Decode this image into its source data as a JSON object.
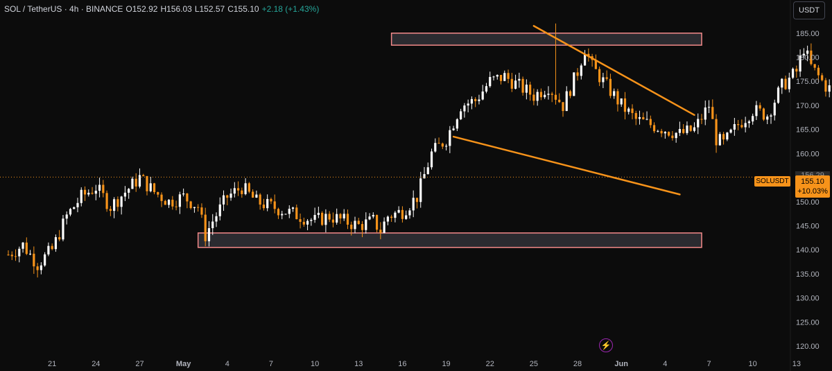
{
  "header": {
    "symbol": "SOL / TetherUS · 4h · BINANCE",
    "open": "O152.92",
    "high": "H156.03",
    "low": "L152.57",
    "close": "C155.10",
    "change": "+2.18 (+1.43%)"
  },
  "toolbar": {
    "currency_label": "USDT"
  },
  "price_scale": {
    "symbol_label": "SOLUSDT",
    "last_price": "155.10",
    "last_change": "+10.03%",
    "prev_label": "156.29",
    "ticks": [
      "185.00",
      "180.00",
      "175.00",
      "170.00",
      "165.00",
      "160.00",
      "150.00",
      "145.00",
      "140.00",
      "135.00",
      "130.00",
      "125.00",
      "120.00"
    ]
  },
  "time_scale": {
    "ticks": [
      "21",
      "24",
      "27",
      "May",
      "4",
      "7",
      "10",
      "13",
      "16",
      "19",
      "22",
      "25",
      "28",
      "Jun",
      "4",
      "7",
      "10",
      "13"
    ]
  },
  "colors": {
    "background": "#0c0c0c",
    "candle_up": "#ffffff",
    "candle_down": "#f7931a",
    "trendline": "#f7931a",
    "zone_border": "#f48a8a",
    "zone_fill": "#2b2b30",
    "last_price_line": "#f7931a"
  },
  "chart_data": {
    "type": "candlestick",
    "interval": "4h",
    "ylim": [
      118,
      189
    ],
    "price_tick_values": [
      185,
      180,
      175,
      170,
      165,
      160,
      150,
      145,
      140,
      135,
      130,
      125,
      120
    ],
    "x_range": [
      -6,
      118
    ],
    "time_tick_positions": [
      0,
      6,
      12,
      18,
      24,
      30,
      36,
      42,
      48,
      54,
      60,
      66,
      72,
      78,
      84,
      90,
      96,
      102
    ],
    "close_path": [
      [
        -6,
        139
      ],
      [
        -4,
        141
      ],
      [
        -2,
        137
      ],
      [
        0,
        140
      ],
      [
        2,
        147
      ],
      [
        4,
        151
      ],
      [
        6,
        153
      ],
      [
        8,
        149
      ],
      [
        10,
        152
      ],
      [
        12,
        155
      ],
      [
        14,
        152
      ],
      [
        16,
        150
      ],
      [
        18,
        151
      ],
      [
        20,
        149
      ],
      [
        21,
        143
      ],
      [
        22,
        146
      ],
      [
        24,
        151
      ],
      [
        26,
        153
      ],
      [
        28,
        150
      ],
      [
        30,
        149
      ],
      [
        32,
        148
      ],
      [
        34,
        147
      ],
      [
        36,
        146
      ],
      [
        38,
        147
      ],
      [
        40,
        146
      ],
      [
        42,
        145
      ],
      [
        44,
        146
      ],
      [
        45,
        144
      ],
      [
        46,
        147
      ],
      [
        48,
        148
      ],
      [
        50,
        151
      ],
      [
        52,
        160
      ],
      [
        54,
        163
      ],
      [
        56,
        170
      ],
      [
        58,
        171
      ],
      [
        60,
        175
      ],
      [
        62,
        176
      ],
      [
        64,
        174
      ],
      [
        66,
        172
      ],
      [
        68,
        174
      ],
      [
        70,
        170
      ],
      [
        72,
        177
      ],
      [
        73,
        182
      ],
      [
        74,
        178
      ],
      [
        76,
        174
      ],
      [
        78,
        170
      ],
      [
        80,
        167
      ],
      [
        82,
        166
      ],
      [
        84,
        165
      ],
      [
        86,
        164
      ],
      [
        88,
        165
      ],
      [
        90,
        170
      ],
      [
        91,
        163
      ],
      [
        92,
        162
      ],
      [
        94,
        166
      ],
      [
        96,
        169
      ],
      [
        98,
        168
      ],
      [
        100,
        174
      ],
      [
        102,
        177
      ],
      [
        103,
        182
      ],
      [
        104,
        178
      ],
      [
        106,
        174
      ],
      [
        108,
        172
      ],
      [
        110,
        177
      ],
      [
        112,
        178
      ],
      [
        114,
        176
      ],
      [
        116,
        173
      ],
      [
        118,
        170
      ],
      [
        120,
        166
      ],
      [
        122,
        160
      ],
      [
        123,
        157
      ],
      [
        124,
        155.1
      ]
    ],
    "high_extremes": [
      [
        69,
        187
      ]
    ],
    "zones": [
      {
        "x1": 46.5,
        "x2": 89,
        "y1": 182.5,
        "y2": 185
      },
      {
        "x1": 20,
        "x2": 89,
        "y1": 140.5,
        "y2": 143.5
      }
    ],
    "trendlines": [
      {
        "x1": 66,
        "y1": 186.5,
        "x2": 88,
        "y2": 168
      },
      {
        "x1": 55,
        "y1": 163.5,
        "x2": 86,
        "y2": 151.5
      }
    ],
    "last_price": 155.1
  }
}
